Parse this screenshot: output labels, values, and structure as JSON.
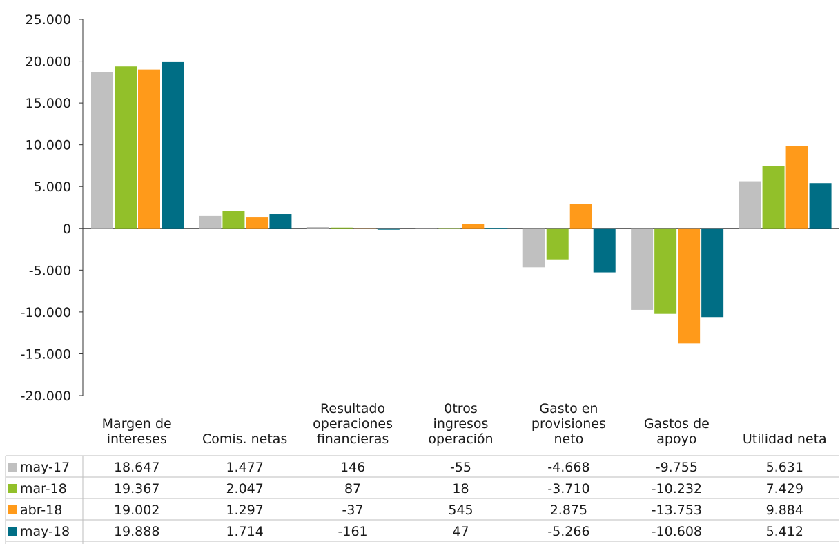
{
  "chart_data": {
    "type": "bar",
    "ylim": [
      -20000,
      25000
    ],
    "yticks": [
      {
        "value": 25000,
        "label": "25.000"
      },
      {
        "value": 20000,
        "label": "20.000"
      },
      {
        "value": 15000,
        "label": "15.000"
      },
      {
        "value": 10000,
        "label": "10.000"
      },
      {
        "value": 5000,
        "label": "5.000"
      },
      {
        "value": 0,
        "label": "0"
      },
      {
        "value": -5000,
        "label": "-5.000"
      },
      {
        "value": -10000,
        "label": "-10.000"
      },
      {
        "value": -15000,
        "label": "-15.000"
      },
      {
        "value": -20000,
        "label": "-20.000"
      }
    ],
    "categories": [
      [
        "Margen de",
        "intereses"
      ],
      [
        "Comis. netas"
      ],
      [
        "Resultado",
        "operaciones",
        "financieras"
      ],
      [
        "0tros",
        "ingresos",
        "operación"
      ],
      [
        "Gasto en",
        "provisiones",
        "neto"
      ],
      [
        "Gastos de",
        "apoyo"
      ],
      [
        "Utilidad neta"
      ]
    ],
    "series": [
      {
        "name": "may-17",
        "color": "#c0c0c0",
        "values": [
          18647,
          1477,
          146,
          -55,
          -4668,
          -9755,
          5631
        ],
        "labels": [
          "18.647",
          "1.477",
          "146",
          "-55",
          "-4.668",
          "-9.755",
          "5.631"
        ]
      },
      {
        "name": "mar-18",
        "color": "#92c02a",
        "values": [
          19367,
          2047,
          87,
          18,
          -3710,
          -10232,
          7429
        ],
        "labels": [
          "19.367",
          "2.047",
          "87",
          "18",
          "-3.710",
          "-10.232",
          "7.429"
        ]
      },
      {
        "name": "abr-18",
        "color": "#ff9a1a",
        "values": [
          19002,
          1297,
          -37,
          545,
          2875,
          -13753,
          9884
        ],
        "labels": [
          "19.002",
          "1.297",
          "-37",
          "545",
          "2.875",
          "-13.753",
          "9.884"
        ]
      },
      {
        "name": "may-18",
        "color": "#006e85",
        "values": [
          19888,
          1714,
          -161,
          47,
          -5266,
          -10608,
          5412
        ],
        "labels": [
          "19.888",
          "1.714",
          "-161",
          "47",
          "-5.266",
          "-10.608",
          "5.412"
        ]
      }
    ],
    "grid": false,
    "legend": "data-table"
  }
}
